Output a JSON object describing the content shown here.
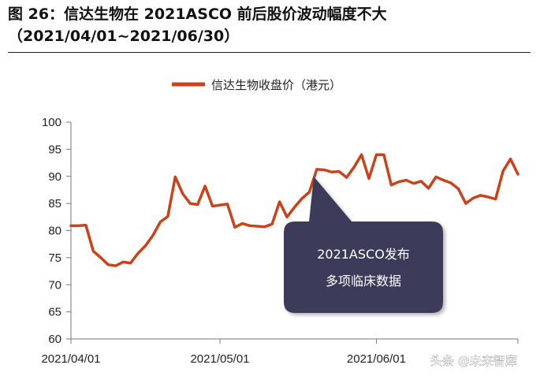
{
  "figure": {
    "title_line1": "图 26：信达生物在 2021ASCO 前后股价波动幅度不大",
    "title_line2": "（2021/04/01~2021/06/30）"
  },
  "chart_data": {
    "type": "line",
    "series": [
      {
        "name": "信达生物收盘价（港元）",
        "color": "#c9421a",
        "x": [
          0,
          1,
          2,
          3,
          4,
          5,
          6,
          7,
          8,
          9,
          10,
          11,
          12,
          13,
          14,
          15,
          16,
          17,
          18,
          19,
          20,
          21,
          22,
          23,
          24,
          25,
          26,
          27,
          28,
          29,
          30,
          31,
          32,
          33,
          34,
          35,
          36,
          37,
          38,
          39,
          40,
          41,
          42,
          43,
          44,
          45,
          46,
          47,
          48,
          49,
          50,
          51,
          52,
          53,
          54,
          55,
          56,
          57,
          58,
          59,
          60
        ],
        "values": [
          80.9,
          80.9,
          81.0,
          76.2,
          75.0,
          73.7,
          73.5,
          74.2,
          74.0,
          75.8,
          77.2,
          79.1,
          81.6,
          82.6,
          89.9,
          86.8,
          85.0,
          84.8,
          88.2,
          84.5,
          84.7,
          84.9,
          80.6,
          81.3,
          80.9,
          80.8,
          80.7,
          81.2,
          85.3,
          82.5,
          84.3,
          85.9,
          87.1,
          91.3,
          91.2,
          90.8,
          90.9,
          89.8,
          91.7,
          94.0,
          89.6,
          94.0,
          94.0,
          88.4,
          89.0,
          89.3,
          88.7,
          89.1,
          87.8,
          89.9,
          89.3,
          88.8,
          87.7,
          85.0,
          86.0,
          86.5,
          86.2,
          85.8,
          91.0,
          93.2,
          90.4
        ]
      }
    ],
    "ylim": [
      60,
      100
    ],
    "yticks": [
      60,
      65,
      70,
      75,
      80,
      85,
      90,
      95,
      100
    ],
    "xtick_labels": [
      "2021/04/01",
      "2021/05/01",
      "2021/06/01"
    ],
    "xtick_index": [
      0,
      20,
      41
    ],
    "x_count": 61,
    "legend_position": "top-center",
    "grid": false,
    "annotation": {
      "line1": "2021ASCO发布",
      "line2": "多项临床数据",
      "fill": "#3c3a5a"
    }
  },
  "watermark": "头条 @未来智库"
}
